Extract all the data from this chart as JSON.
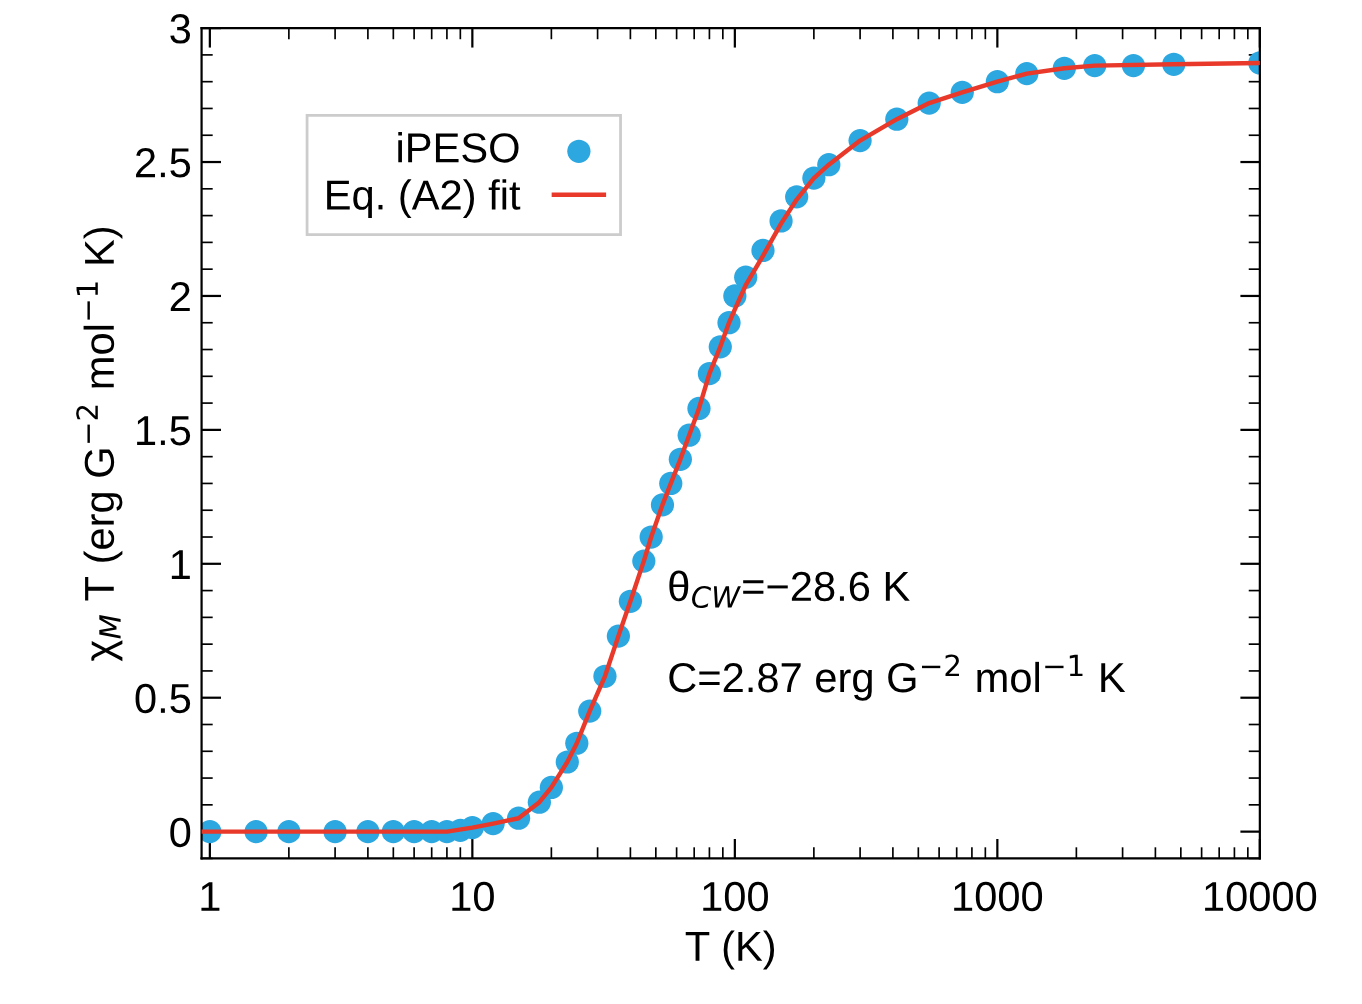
{
  "chart_data": {
    "type": "scatter",
    "xlabel": "T (K)",
    "ylabel": "χ$_{M}$ T (erg G$^{−2}$ mol$^{−1}$ K)",
    "series": [
      {
        "name": "iPESO",
        "color": "#2ca7e0",
        "marker": "circle",
        "x": [
          1,
          1.5,
          2,
          3,
          4,
          5,
          6,
          7,
          8,
          9,
          10,
          12,
          15,
          18,
          20,
          23,
          25,
          28,
          32,
          36,
          40,
          45,
          48,
          53,
          57,
          62,
          67,
          73,
          80,
          88,
          95,
          100,
          110,
          128,
          150,
          172,
          200,
          228,
          300,
          414,
          550,
          735,
          1000,
          1295,
          1800,
          2350,
          3300,
          4700,
          10000
        ],
        "values": [
          0,
          0,
          0,
          0,
          0,
          0,
          0,
          0,
          0,
          0.005,
          0.015,
          0.03,
          0.05,
          0.11,
          0.165,
          0.26,
          0.33,
          0.45,
          0.58,
          0.73,
          0.86,
          1.01,
          1.1,
          1.22,
          1.3,
          1.39,
          1.48,
          1.58,
          1.71,
          1.81,
          1.9,
          2.0,
          2.07,
          2.17,
          2.28,
          2.37,
          2.44,
          2.49,
          2.58,
          2.66,
          2.72,
          2.76,
          2.8,
          2.83,
          2.85,
          2.86,
          2.86,
          2.865,
          2.87
        ]
      },
      {
        "name": "Eq. (A2) fit",
        "type": "line",
        "color": "#e8392a",
        "marker": "none",
        "line_style": "solid",
        "x": [
          0.93,
          2,
          5,
          8,
          10,
          12,
          15,
          18,
          20,
          23,
          25,
          28,
          32,
          36,
          40,
          45,
          48,
          53,
          57,
          62,
          67,
          73,
          80,
          88,
          95,
          100,
          110,
          128,
          150,
          172,
          200,
          228,
          300,
          414,
          550,
          735,
          1000,
          1295,
          1800,
          2350,
          4700,
          10000
        ],
        "values": [
          0,
          0,
          0,
          0,
          0.015,
          0.03,
          0.05,
          0.11,
          0.165,
          0.26,
          0.33,
          0.45,
          0.58,
          0.73,
          0.86,
          1.01,
          1.1,
          1.22,
          1.3,
          1.39,
          1.48,
          1.58,
          1.71,
          1.81,
          1.9,
          1.95,
          2.04,
          2.15,
          2.27,
          2.36,
          2.44,
          2.49,
          2.58,
          2.66,
          2.72,
          2.76,
          2.8,
          2.83,
          2.85,
          2.86,
          2.865,
          2.87
        ]
      }
    ],
    "log": "x",
    "xlim": [
      0.93,
      10000
    ],
    "xticks": [
      1,
      10,
      100,
      1000,
      10000
    ],
    "ylim": [
      -0.1,
      3
    ],
    "yticks": [
      0,
      0.5,
      1,
      1.5,
      2,
      2.5,
      3
    ],
    "grid": false,
    "legend": "top left",
    "annotations": [
      "θ$_{CW}$=−28.6 K",
      "C=2.87 erg G$^{−2}$ mol$^{−1}$ K"
    ]
  }
}
